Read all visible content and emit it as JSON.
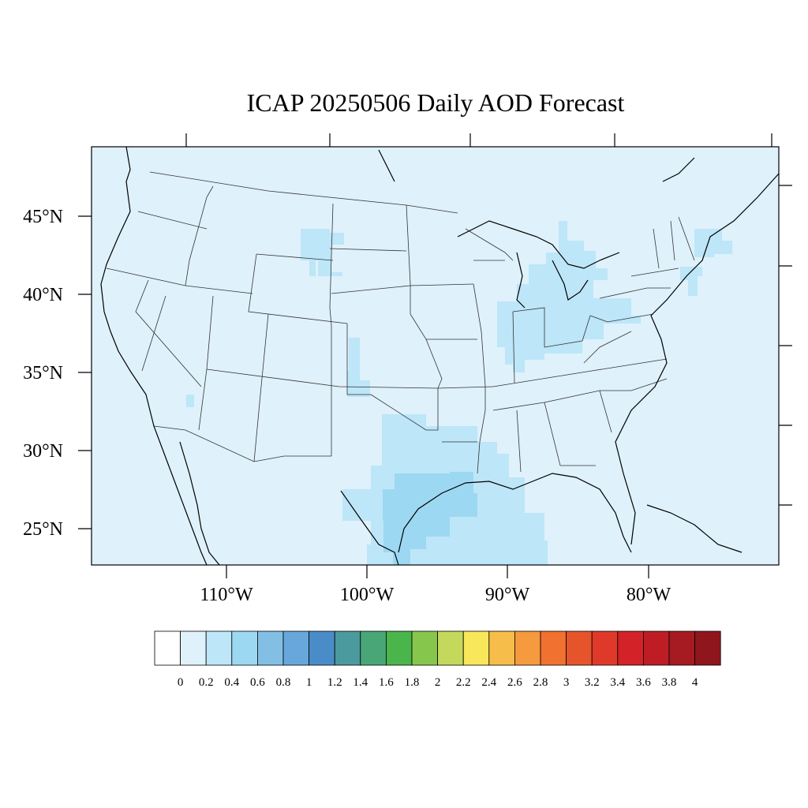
{
  "title": "ICAP 20250506 Daily AOD Forecast",
  "map": {
    "background_color": "#dff1fb",
    "lat_labels": [
      "45°N",
      "40°N",
      "35°N",
      "30°N",
      "25°N"
    ],
    "lon_labels": [
      "110°W",
      "100°W",
      "90°W",
      "80°W"
    ]
  },
  "colorbar": {
    "labels": [
      "0",
      "0.2",
      "0.4",
      "0.6",
      "0.8",
      "1",
      "1.2",
      "1.4",
      "1.6",
      "1.8",
      "2",
      "2.2",
      "2.4",
      "2.6",
      "2.8",
      "3",
      "3.2",
      "3.4",
      "3.6",
      "3.8",
      "4"
    ],
    "colors": [
      "#ffffff",
      "#dff1fb",
      "#bde6f8",
      "#9dd8f3",
      "#83bfe4",
      "#68a7db",
      "#4a8cc8",
      "#4a9a9e",
      "#48a677",
      "#4ab54b",
      "#87c64c",
      "#c4d85c",
      "#f8e75b",
      "#f7bd4b",
      "#f59a3e",
      "#f07130",
      "#e6542b",
      "#df3a29",
      "#d32228",
      "#bf1d26",
      "#a61b22",
      "#8f161c"
    ]
  }
}
